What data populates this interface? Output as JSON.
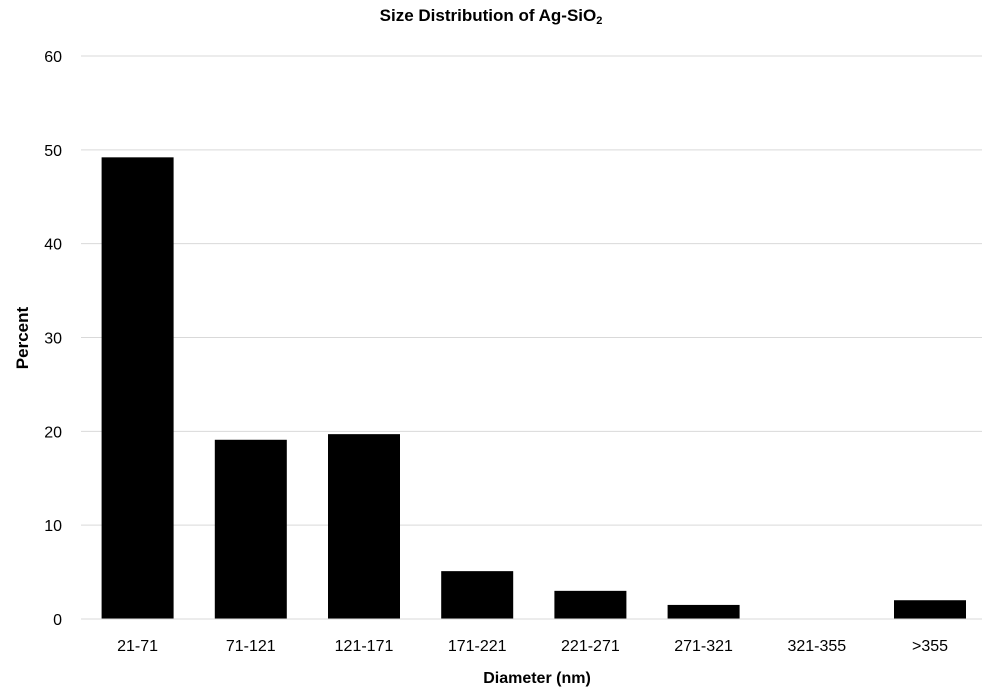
{
  "chart_data": {
    "type": "bar",
    "title": "Size Distribution of Ag-SiO",
    "title_subscript": "2",
    "xlabel": "Diameter (nm)",
    "ylabel": "Percent",
    "categories": [
      "21-71",
      "71-121",
      "121-171",
      "171-221",
      "221-271",
      "271-321",
      "321-355",
      ">355"
    ],
    "values": [
      49.2,
      19.1,
      19.7,
      5.1,
      3.0,
      1.5,
      0,
      2.0
    ],
    "ylim": [
      0,
      60
    ],
    "yticks": [
      0,
      10,
      20,
      30,
      40,
      50,
      60
    ],
    "grid": true,
    "legend": "none",
    "bar_color": "#000000",
    "grid_color": "#d9d9d9"
  }
}
